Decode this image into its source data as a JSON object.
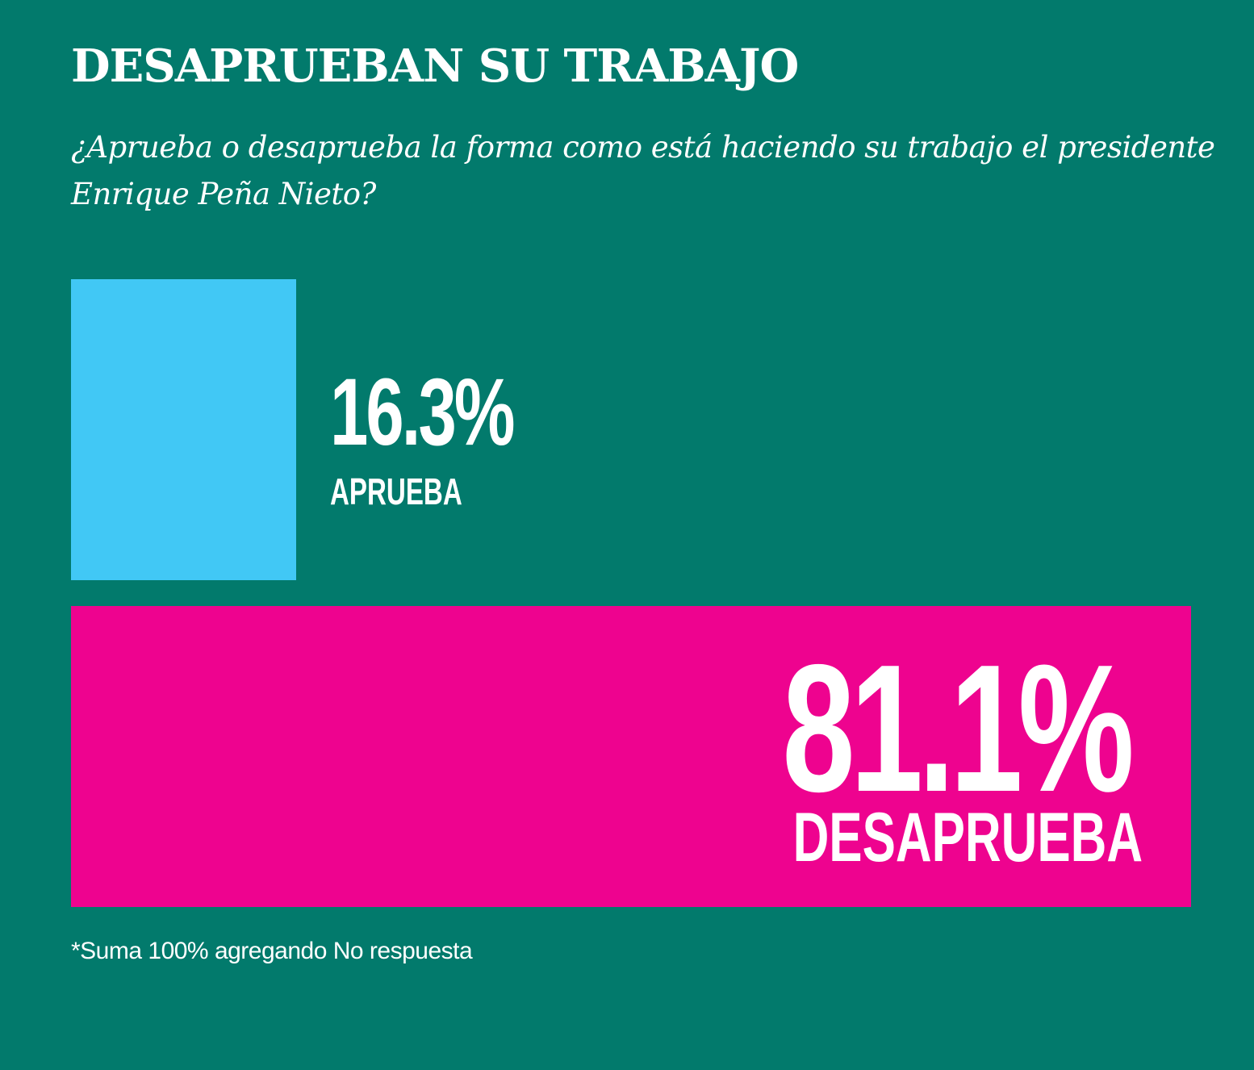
{
  "chart_data": {
    "type": "bar",
    "title": "DESAPRUEBAN SU TRABAJO",
    "subtitle": "¿Aprueba o desaprueba la forma como está haciendo su trabajo el presidente Enrique Peña Nieto?",
    "categories": [
      "APRUEBA",
      "DESAPRUEBA"
    ],
    "values": [
      16.3,
      81.1
    ],
    "value_labels": [
      "16.3%",
      "81.1%"
    ],
    "colors": [
      "#41c8f5",
      "#ee038f"
    ],
    "unit": "%",
    "footnote": "*Suma 100% agregando No respuesta"
  },
  "theme": {
    "background": "#027a6c",
    "text": "#ffffff"
  }
}
